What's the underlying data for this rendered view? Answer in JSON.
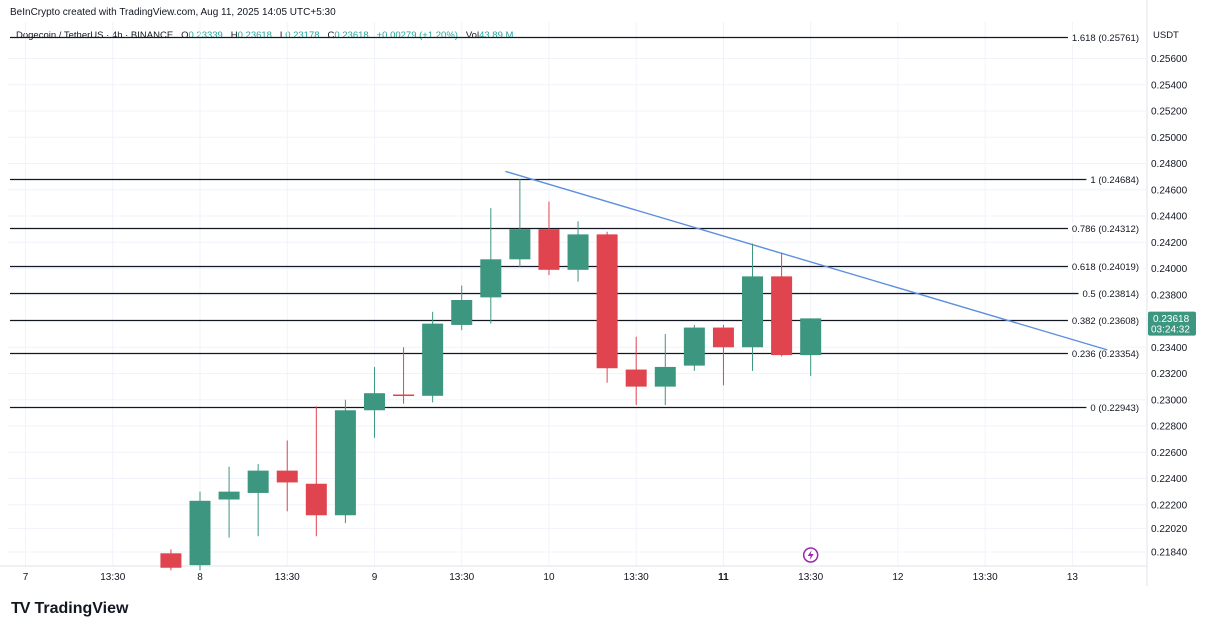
{
  "header": {
    "created_by": "BeInCrypto created with TradingView.com, Aug 11, 2025 14:05 UTC+5:30"
  },
  "symbol_bar": {
    "symbol": "Dogecoin / TetherUS · 4h · BINANCE",
    "open_label": "O",
    "open": "0.23339",
    "high_label": "H",
    "high": "0.23618",
    "low_label": "L",
    "low": "0.23178",
    "close_label": "C",
    "close": "0.23618",
    "change": "+0.00279 (+1.20%)",
    "vol_label": "Vol",
    "vol": "43.89 M"
  },
  "currency": "USDT",
  "footer": {
    "brand": "TradingView"
  },
  "colors": {
    "up": "#3d9680",
    "down": "#e0444f",
    "trendline": "#5d8fe0",
    "fib_line": "#131722",
    "price_tag": "#3d9680"
  },
  "chart_data": {
    "type": "candlestick",
    "title": "Dogecoin / TetherUS · 4h · BINANCE",
    "timeframe": "4h",
    "y_axis": {
      "ticks": [
        "0.25600",
        "0.25400",
        "0.25200",
        "0.25000",
        "0.24800",
        "0.24600",
        "0.24400",
        "0.24200",
        "0.24000",
        "0.23800",
        "0.23400",
        "0.23200",
        "0.23000",
        "0.22800",
        "0.22600",
        "0.22400",
        "0.22200",
        "0.22020",
        "0.21840"
      ],
      "ylim": [
        0.217,
        0.2586
      ]
    },
    "x_axis": {
      "ticks": [
        {
          "label": "7",
          "slot": -1,
          "bold": false
        },
        {
          "label": "13:30",
          "slot": 2,
          "bold": false
        },
        {
          "label": "8",
          "slot": 5,
          "bold": false
        },
        {
          "label": "13:30",
          "slot": 8,
          "bold": false
        },
        {
          "label": "9",
          "slot": 11,
          "bold": false
        },
        {
          "label": "13:30",
          "slot": 14,
          "bold": false
        },
        {
          "label": "10",
          "slot": 17,
          "bold": false
        },
        {
          "label": "13:30",
          "slot": 20,
          "bold": false
        },
        {
          "label": "11",
          "slot": 23,
          "bold": true
        },
        {
          "label": "13:30",
          "slot": 26,
          "bold": false
        },
        {
          "label": "12",
          "slot": 29,
          "bold": false
        },
        {
          "label": "13:30",
          "slot": 32,
          "bold": false
        },
        {
          "label": "13",
          "slot": 35,
          "bold": false
        }
      ]
    },
    "candles": [
      {
        "slot": 4,
        "o": 0.2183,
        "h": 0.2186,
        "l": 0.217,
        "c": 0.2172
      },
      {
        "slot": 5,
        "o": 0.2174,
        "h": 0.223,
        "l": 0.217,
        "c": 0.2223
      },
      {
        "slot": 6,
        "o": 0.2224,
        "h": 0.2249,
        "l": 0.2195,
        "c": 0.223
      },
      {
        "slot": 7,
        "o": 0.2229,
        "h": 0.2251,
        "l": 0.2196,
        "c": 0.2246
      },
      {
        "slot": 8,
        "o": 0.2246,
        "h": 0.2269,
        "l": 0.2215,
        "c": 0.2237
      },
      {
        "slot": 9,
        "o": 0.2236,
        "h": 0.2295,
        "l": 0.2196,
        "c": 0.2212
      },
      {
        "slot": 10,
        "o": 0.2212,
        "h": 0.23,
        "l": 0.2206,
        "c": 0.2292
      },
      {
        "slot": 11,
        "o": 0.2292,
        "h": 0.2325,
        "l": 0.2271,
        "c": 0.2305
      },
      {
        "slot": 12,
        "o": 0.2304,
        "h": 0.234,
        "l": 0.2297,
        "c": 0.2303
      },
      {
        "slot": 13,
        "o": 0.2303,
        "h": 0.2367,
        "l": 0.2298,
        "c": 0.2358
      },
      {
        "slot": 14,
        "o": 0.2357,
        "h": 0.2387,
        "l": 0.2353,
        "c": 0.2376
      },
      {
        "slot": 15,
        "o": 0.2378,
        "h": 0.2446,
        "l": 0.2358,
        "c": 0.2407
      },
      {
        "slot": 16,
        "o": 0.2407,
        "h": 0.2468,
        "l": 0.2401,
        "c": 0.243
      },
      {
        "slot": 17,
        "o": 0.243,
        "h": 0.2451,
        "l": 0.2395,
        "c": 0.2399
      },
      {
        "slot": 18,
        "o": 0.2399,
        "h": 0.2436,
        "l": 0.239,
        "c": 0.2426
      },
      {
        "slot": 19,
        "o": 0.2426,
        "h": 0.2428,
        "l": 0.2313,
        "c": 0.2324
      },
      {
        "slot": 20,
        "o": 0.2323,
        "h": 0.2348,
        "l": 0.2296,
        "c": 0.231
      },
      {
        "slot": 21,
        "o": 0.231,
        "h": 0.235,
        "l": 0.2296,
        "c": 0.2325
      },
      {
        "slot": 22,
        "o": 0.2326,
        "h": 0.2357,
        "l": 0.2322,
        "c": 0.2355
      },
      {
        "slot": 23,
        "o": 0.2355,
        "h": 0.2357,
        "l": 0.2311,
        "c": 0.234
      },
      {
        "slot": 24,
        "o": 0.234,
        "h": 0.2419,
        "l": 0.2322,
        "c": 0.2394
      },
      {
        "slot": 25,
        "o": 0.2394,
        "h": 0.2412,
        "l": 0.2333,
        "c": 0.2334
      },
      {
        "slot": 26,
        "o": 0.2334,
        "h": 0.2362,
        "l": 0.2318,
        "c": 0.2362
      }
    ],
    "fibonacci": [
      {
        "label": "1.618 (0.25761)",
        "value": 0.25761
      },
      {
        "label": "1 (0.24684)",
        "value": 0.24684
      },
      {
        "label": "0.786 (0.24312)",
        "value": 0.24312
      },
      {
        "label": "0.618 (0.24019)",
        "value": 0.24019
      },
      {
        "label": "0.5 (0.23814)",
        "value": 0.23814
      },
      {
        "label": "0.382 (0.23608)",
        "value": 0.23608
      },
      {
        "label": "0.236 (0.23354)",
        "value": 0.23354
      },
      {
        "label": "0 (0.22943)",
        "value": 0.22943
      }
    ],
    "trendline": {
      "start": {
        "slot": 15.5,
        "value": 0.2474
      },
      "end": {
        "slot": 36.2,
        "value": 0.2338
      }
    },
    "last_price": {
      "value": 0.23618,
      "price_label": "0.23618",
      "countdown": "03:24:32"
    },
    "event_marker_slot": 26
  }
}
